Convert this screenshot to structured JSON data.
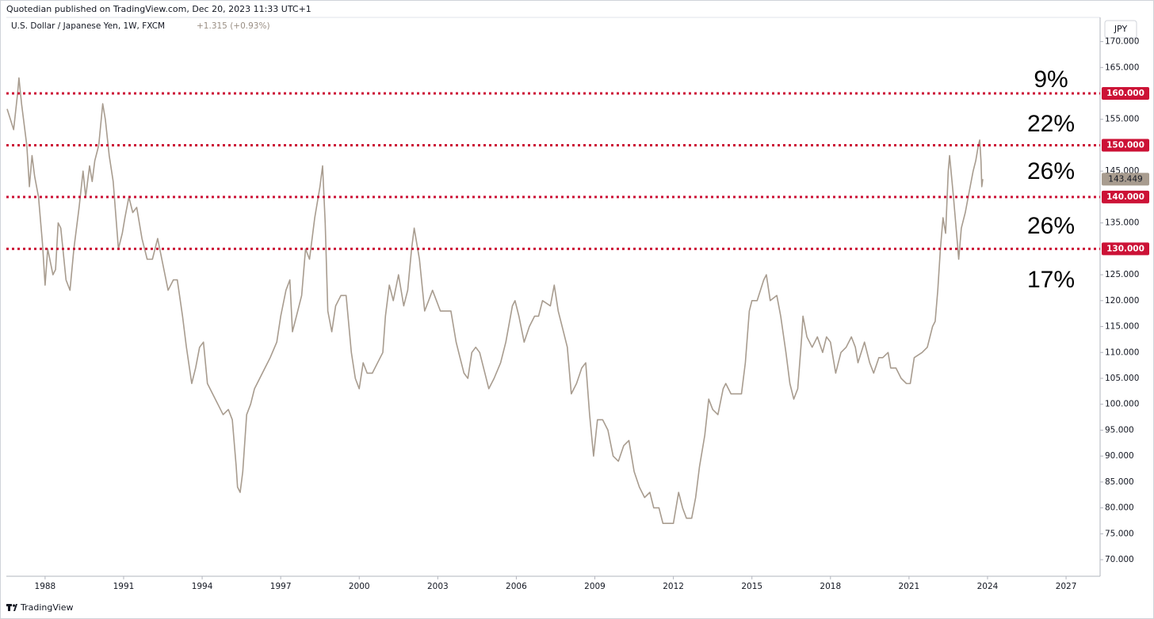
{
  "header": "Quotedian published on TradingView.com, Dec 20, 2023 11:33 UTC+1",
  "footer": "TradingView",
  "chart_data": {
    "type": "line",
    "title": "U.S. Dollar / Japanese Yen, 1W, FXCM",
    "change": "+1.315 (+0.93%)",
    "currency": "JPY",
    "color": "#a89c8f",
    "level_color": "#cc1236",
    "annotations": [
      "9%",
      "22%",
      "26%",
      "26%",
      "17%"
    ],
    "levels": [
      {
        "value": 160,
        "label": "160.000"
      },
      {
        "value": 150,
        "label": "150.000"
      },
      {
        "value": 140,
        "label": "140.000"
      },
      {
        "value": 130,
        "label": "130.000"
      }
    ],
    "last_price": {
      "value": 143.449,
      "label": "143.449"
    },
    "xlim": [
      1986.52,
      2028.3
    ],
    "ylim": [
      66.8,
      174.67
    ],
    "xticks": [
      1988,
      1991,
      1994,
      1997,
      2000,
      2003,
      2006,
      2009,
      2012,
      2015,
      2018,
      2021,
      2024,
      2027
    ],
    "yticks": [
      {
        "value": 70,
        "label": "70.000"
      },
      {
        "value": 75,
        "label": "75.000"
      },
      {
        "value": 80,
        "label": "80.000"
      },
      {
        "value": 85,
        "label": "85.000"
      },
      {
        "value": 90,
        "label": "90.000"
      },
      {
        "value": 95,
        "label": "95.000"
      },
      {
        "value": 100,
        "label": "100.000"
      },
      {
        "value": 105,
        "label": "105.000"
      },
      {
        "value": 110,
        "label": "110.000"
      },
      {
        "value": 115,
        "label": "115.000"
      },
      {
        "value": 120,
        "label": "120.000"
      },
      {
        "value": 125,
        "label": "125.000"
      },
      {
        "value": 135,
        "label": "135.000"
      },
      {
        "value": 145,
        "label": "145.000"
      },
      {
        "value": 155,
        "label": "155.000"
      },
      {
        "value": 165,
        "label": "165.000"
      },
      {
        "value": 170,
        "label": "170.000"
      }
    ],
    "x": [
      1986.55,
      1986.8,
      1986.95,
      1987.0,
      1987.1,
      1987.3,
      1987.4,
      1987.5,
      1987.6,
      1987.75,
      1987.9,
      1988.0,
      1988.1,
      1988.3,
      1988.4,
      1988.5,
      1988.6,
      1988.8,
      1988.95,
      1989.1,
      1989.3,
      1989.45,
      1989.55,
      1989.7,
      1989.8,
      1989.9,
      1990.05,
      1990.2,
      1990.3,
      1990.45,
      1990.6,
      1990.8,
      1990.95,
      1991.05,
      1991.2,
      1991.35,
      1991.5,
      1991.7,
      1991.9,
      1992.1,
      1992.3,
      1992.5,
      1992.7,
      1992.9,
      1993.05,
      1993.25,
      1993.4,
      1993.6,
      1993.75,
      1993.9,
      1994.05,
      1994.2,
      1994.4,
      1994.6,
      1994.8,
      1995.0,
      1995.15,
      1995.3,
      1995.35,
      1995.45,
      1995.55,
      1995.7,
      1995.85,
      1996.0,
      1996.2,
      1996.4,
      1996.6,
      1996.85,
      1997.0,
      1997.2,
      1997.35,
      1997.45,
      1997.6,
      1997.8,
      1997.95,
      1998.1,
      1998.3,
      1998.5,
      1998.6,
      1998.7,
      1998.8,
      1998.95,
      1999.1,
      1999.3,
      1999.5,
      1999.7,
      1999.85,
      2000.0,
      2000.15,
      2000.3,
      2000.5,
      2000.7,
      2000.9,
      2001.0,
      2001.15,
      2001.3,
      2001.5,
      2001.7,
      2001.85,
      2002.0,
      2002.1,
      2002.3,
      2002.5,
      2002.65,
      2002.8,
      2002.95,
      2003.1,
      2003.3,
      2003.5,
      2003.7,
      2003.85,
      2004.0,
      2004.15,
      2004.3,
      2004.45,
      2004.6,
      2004.8,
      2004.95,
      2005.15,
      2005.4,
      2005.6,
      2005.85,
      2005.95,
      2006.1,
      2006.3,
      2006.5,
      2006.7,
      2006.85,
      2007.0,
      2007.3,
      2007.45,
      2007.6,
      2007.8,
      2007.95,
      2008.1,
      2008.3,
      2008.5,
      2008.65,
      2008.8,
      2008.95,
      2009.1,
      2009.3,
      2009.5,
      2009.7,
      2009.9,
      2010.1,
      2010.3,
      2010.5,
      2010.7,
      2010.9,
      2011.1,
      2011.25,
      2011.45,
      2011.6,
      2011.8,
      2012.0,
      2012.2,
      2012.35,
      2012.5,
      2012.7,
      2012.85,
      2013.0,
      2013.2,
      2013.35,
      2013.5,
      2013.7,
      2013.9,
      2014.0,
      2014.2,
      2014.4,
      2014.6,
      2014.75,
      2014.9,
      2015.0,
      2015.2,
      2015.45,
      2015.55,
      2015.7,
      2015.95,
      2016.1,
      2016.3,
      2016.45,
      2016.6,
      2016.75,
      2016.9,
      2016.95,
      2017.1,
      2017.3,
      2017.5,
      2017.7,
      2017.85,
      2018.0,
      2018.2,
      2018.4,
      2018.6,
      2018.8,
      2018.95,
      2019.05,
      2019.3,
      2019.5,
      2019.65,
      2019.85,
      2020.0,
      2020.2,
      2020.3,
      2020.5,
      2020.7,
      2020.9,
      2021.05,
      2021.2,
      2021.5,
      2021.7,
      2021.9,
      2022.0,
      2022.1,
      2022.2,
      2022.3,
      2022.4,
      2022.5,
      2022.55,
      2022.7,
      2022.85,
      2022.9,
      2023.0,
      2023.15,
      2023.3,
      2023.45,
      2023.55,
      2023.65,
      2023.7,
      2023.75,
      2023.78,
      2023.82
    ],
    "values": [
      157,
      153,
      160,
      163,
      158,
      150,
      142,
      148,
      144,
      140,
      131,
      123,
      130,
      125,
      126,
      135,
      134,
      124,
      122,
      130,
      138,
      145,
      140,
      146,
      143,
      147,
      150,
      158,
      155,
      148,
      143,
      130,
      133,
      136,
      140,
      137,
      138,
      132,
      128,
      128,
      132,
      127,
      122,
      124,
      124,
      117,
      111,
      104,
      107,
      111,
      112,
      104,
      102,
      100,
      98,
      99,
      97,
      88,
      84,
      83,
      87,
      98,
      100,
      103,
      105,
      107,
      109,
      112,
      117,
      122,
      124,
      114,
      117,
      121,
      130,
      128,
      136,
      142,
      146,
      135,
      118,
      114,
      119,
      121,
      121,
      110,
      105,
      103,
      108,
      106,
      106,
      108,
      110,
      117,
      123,
      120,
      125,
      119,
      122,
      130,
      134,
      128,
      118,
      120,
      122,
      120,
      118,
      118,
      118,
      112,
      109,
      106,
      105,
      110,
      111,
      110,
      106,
      103,
      105,
      108,
      112,
      119,
      120,
      117,
      112,
      115,
      117,
      117,
      120,
      119,
      123,
      118,
      114,
      111,
      102,
      104,
      107,
      108,
      98,
      90,
      97,
      97,
      95,
      90,
      89,
      92,
      93,
      87,
      84,
      82,
      83,
      80,
      80,
      77,
      77,
      77,
      83,
      80,
      78,
      78,
      82,
      88,
      94,
      101,
      99,
      98,
      103,
      104,
      102,
      102,
      102,
      108,
      118,
      120,
      120,
      124,
      125,
      120,
      121,
      117,
      110,
      104,
      101,
      103,
      113,
      117,
      113,
      111,
      113,
      110,
      113,
      112,
      106,
      110,
      111,
      113,
      111,
      108,
      112,
      108,
      106,
      109,
      109,
      110,
      107,
      107,
      105,
      104,
      104,
      109,
      110,
      111,
      115,
      116,
      122,
      130,
      136,
      133,
      145,
      148,
      140,
      131,
      128,
      134,
      137,
      141,
      145,
      147,
      150,
      151,
      147,
      142,
      143.449
    ]
  }
}
